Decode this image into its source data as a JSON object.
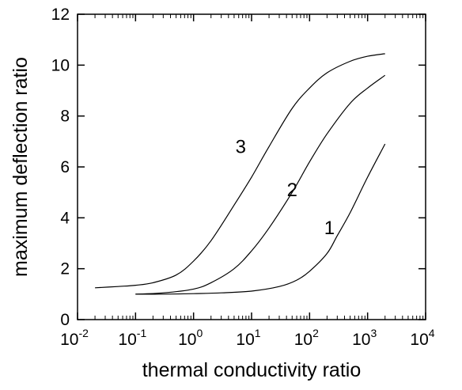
{
  "chart_data": {
    "type": "line",
    "title": "",
    "xlabel": "thermal conductivity ratio",
    "ylabel": "maximum deflection ratio",
    "xscale": "log",
    "xlim": [
      0.01,
      10000
    ],
    "ylim": [
      0,
      12
    ],
    "x_ticks": [
      {
        "base": "10",
        "exp": "-2",
        "value": 0.01
      },
      {
        "base": "10",
        "exp": "-1",
        "value": 0.1
      },
      {
        "base": "10",
        "exp": "0",
        "value": 1
      },
      {
        "base": "10",
        "exp": "1",
        "value": 10
      },
      {
        "base": "10",
        "exp": "2",
        "value": 100
      },
      {
        "base": "10",
        "exp": "3",
        "value": 1000
      },
      {
        "base": "10",
        "exp": "4",
        "value": 10000
      }
    ],
    "y_ticks": [
      "0",
      "2",
      "4",
      "6",
      "8",
      "10",
      "12"
    ],
    "grid": false,
    "legend": "none",
    "series": [
      {
        "name": "1",
        "x": [
          0.1,
          0.3,
          1,
          3,
          10,
          30,
          60,
          100,
          200,
          300,
          500,
          1000,
          2000
        ],
        "y": [
          1.0,
          1.0,
          1.02,
          1.05,
          1.12,
          1.3,
          1.55,
          1.9,
          2.6,
          3.3,
          4.2,
          5.6,
          6.9
        ]
      },
      {
        "name": "2",
        "x": [
          0.1,
          0.3,
          1,
          2,
          5,
          10,
          20,
          50,
          100,
          200,
          500,
          1000,
          2000
        ],
        "y": [
          1.0,
          1.05,
          1.2,
          1.45,
          2.0,
          2.7,
          3.6,
          5.0,
          6.2,
          7.3,
          8.5,
          9.1,
          9.6
        ]
      },
      {
        "name": "3",
        "x": [
          0.02,
          0.05,
          0.1,
          0.2,
          0.5,
          1,
          2,
          5,
          10,
          20,
          50,
          100,
          200,
          500,
          1000,
          2000
        ],
        "y": [
          1.25,
          1.3,
          1.35,
          1.45,
          1.75,
          2.3,
          3.1,
          4.5,
          5.6,
          6.8,
          8.3,
          9.1,
          9.7,
          10.15,
          10.35,
          10.45
        ]
      }
    ],
    "curve_labels": [
      "3",
      "2",
      "1"
    ]
  }
}
